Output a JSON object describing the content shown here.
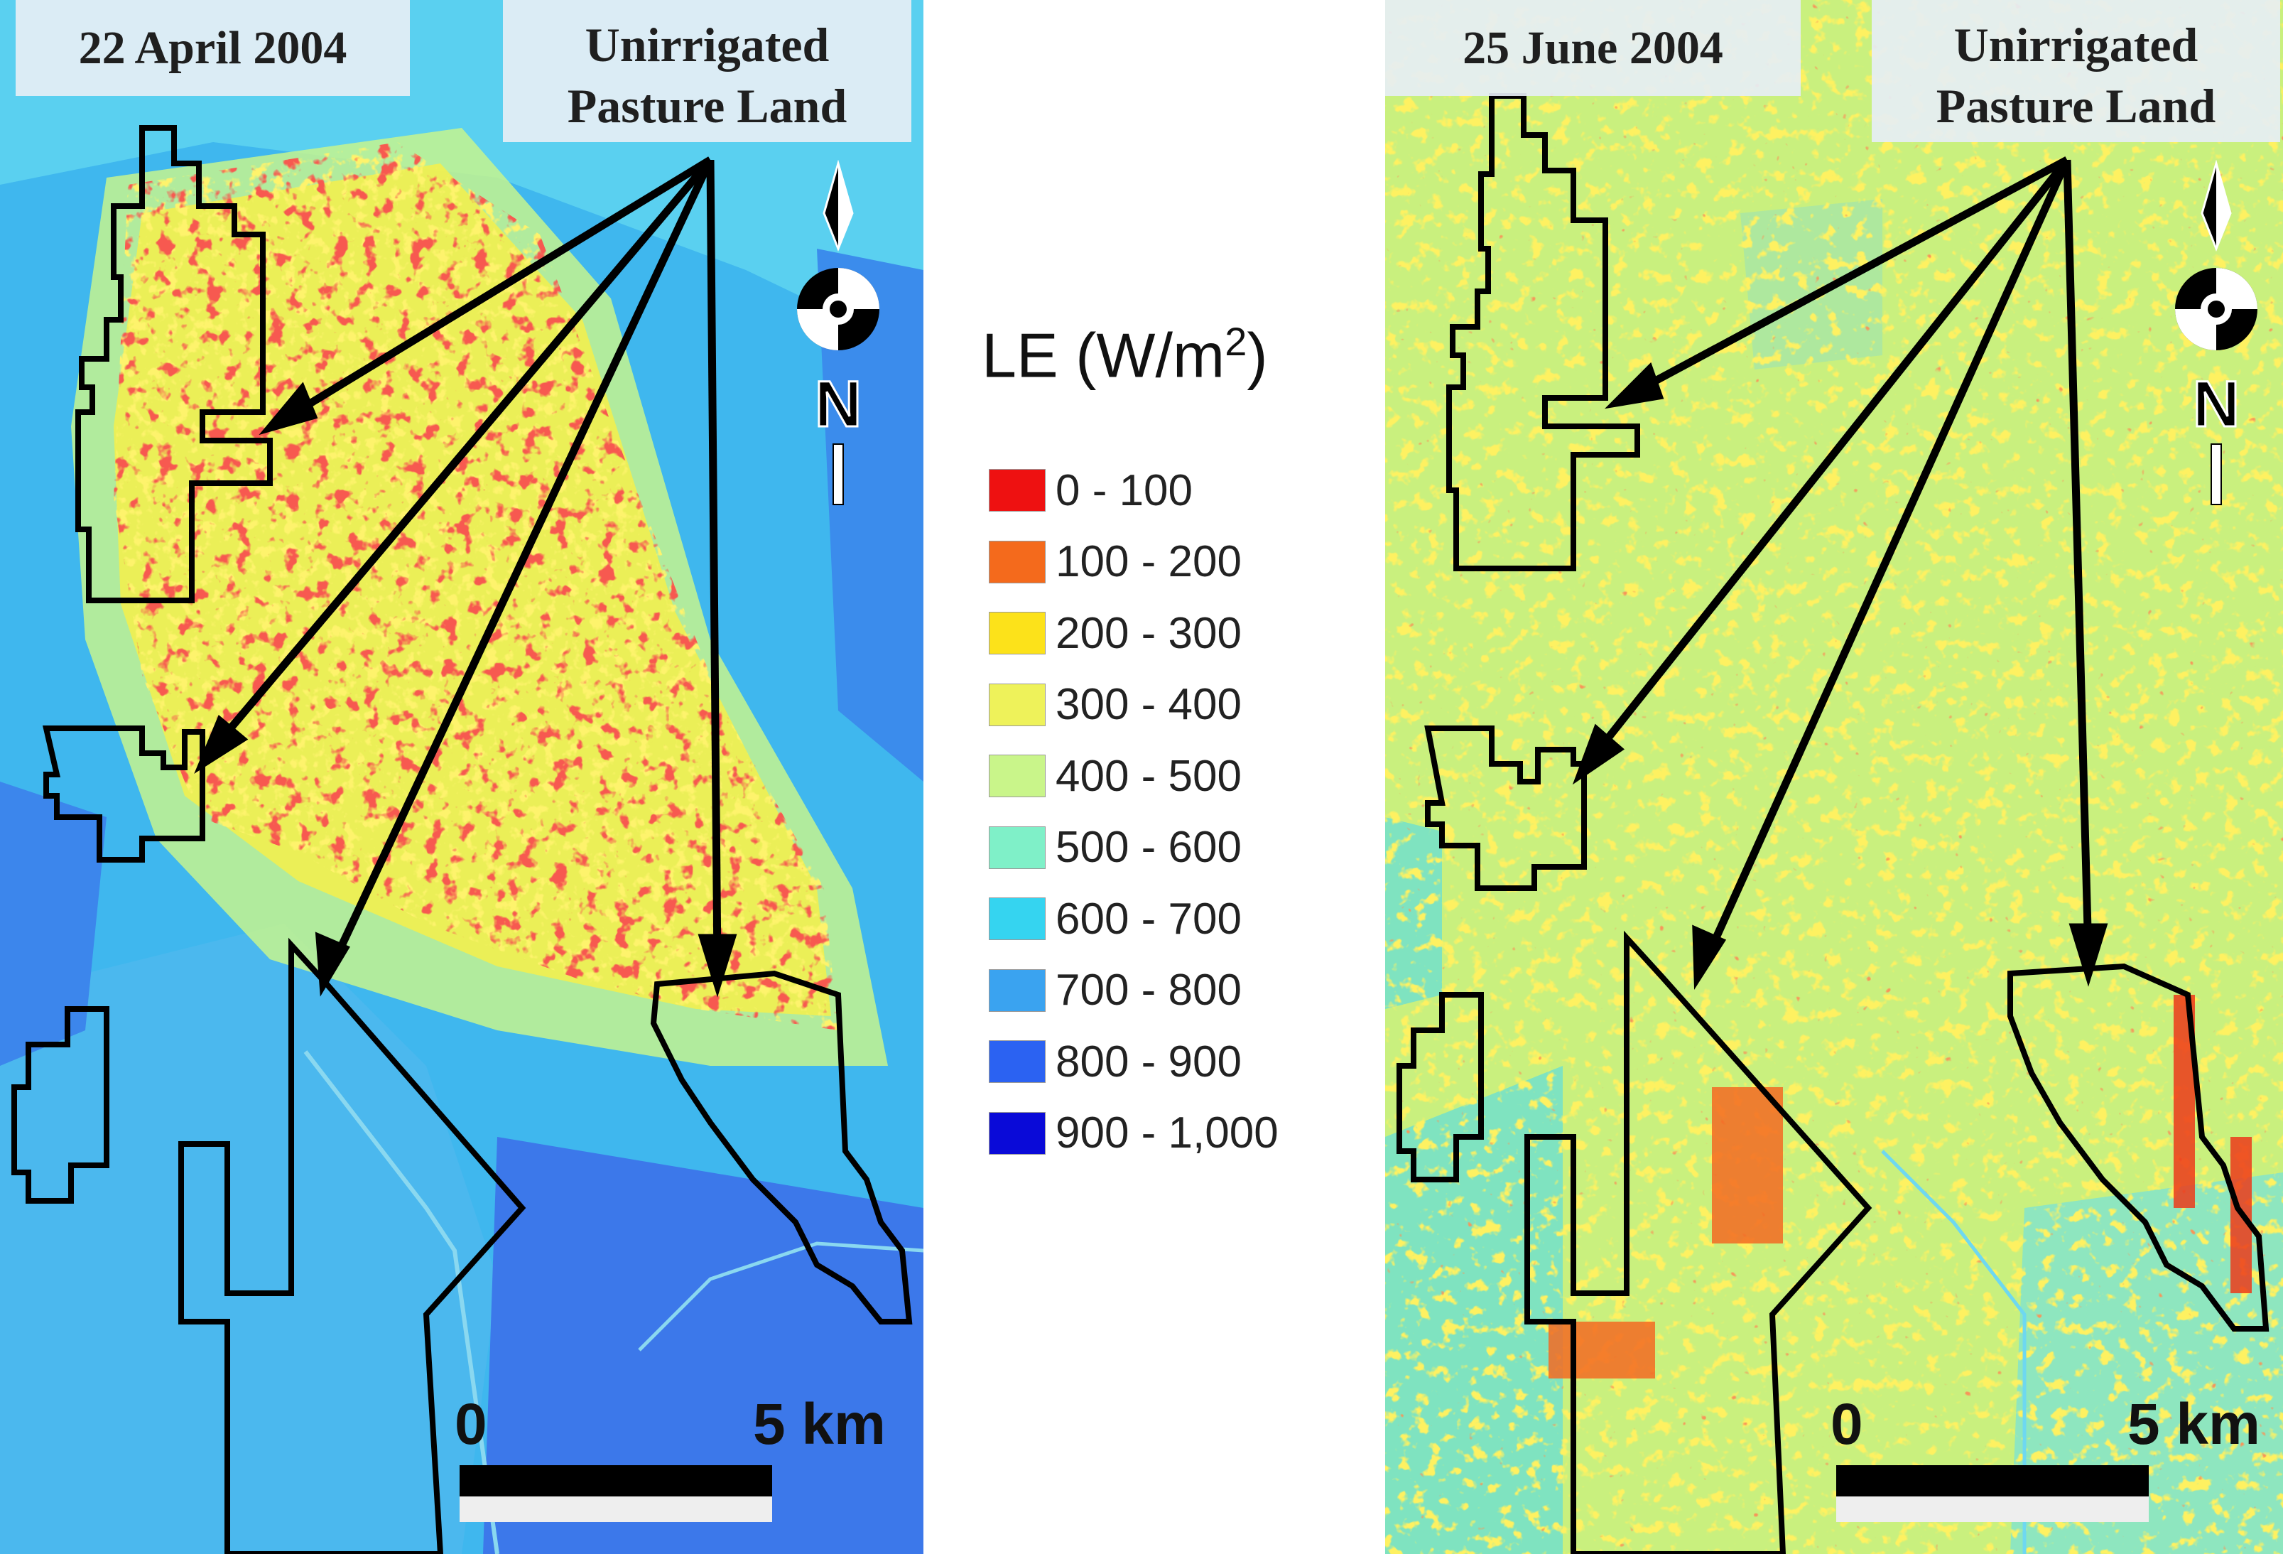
{
  "legend": {
    "title_main": "LE (W/m",
    "title_sup": "2",
    "title_end": ")",
    "items": [
      {
        "label": "0 - 100",
        "color": "#ee1111"
      },
      {
        "label": "100 - 200",
        "color": "#f46a1c"
      },
      {
        "label": "200 - 300",
        "color": "#fce21a"
      },
      {
        "label": "300 - 400",
        "color": "#eef25a"
      },
      {
        "label": "400 - 500",
        "color": "#c9f58a"
      },
      {
        "label": "500 - 600",
        "color": "#7ff0c8"
      },
      {
        "label": "600 - 700",
        "color": "#35d4f0"
      },
      {
        "label": "700 - 800",
        "color": "#3aa3f0"
      },
      {
        "label": "800 - 900",
        "color": "#2b62f2"
      },
      {
        "label": "900 - 1,000",
        "color": "#0a0ad8"
      }
    ]
  },
  "left_map": {
    "date": "22 April  2004",
    "annotation_line1": "Unirrigated",
    "annotation_line2": "Pasture Land",
    "north_label": "N",
    "scale_start": "0",
    "scale_end": "5  km"
  },
  "right_map": {
    "date": "25 June 2004",
    "annotation_line1": "Unirrigated",
    "annotation_line2": "Pasture Land",
    "north_label": "N",
    "scale_start": "0",
    "scale_end": "5  km"
  }
}
